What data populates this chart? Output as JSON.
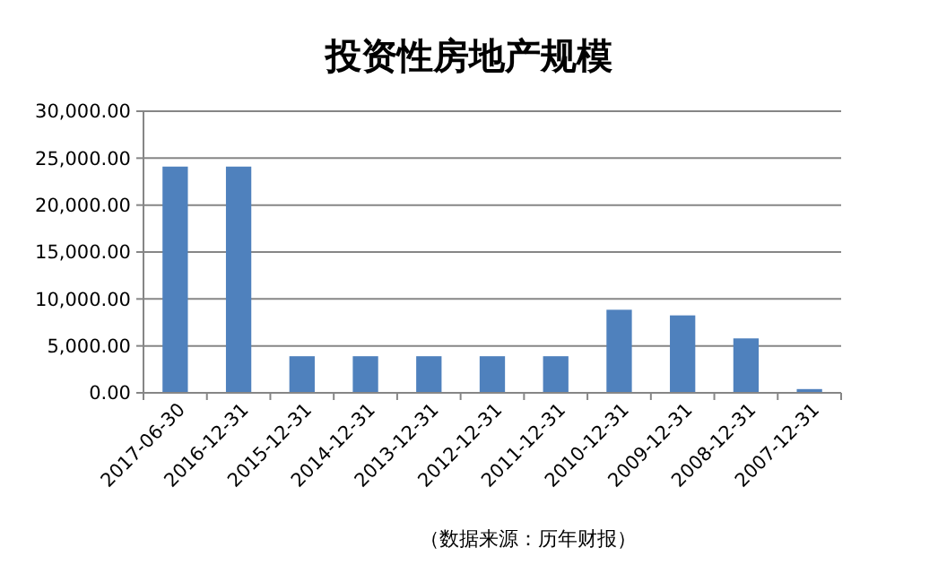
{
  "chart_data": {
    "type": "bar",
    "title": "投资性房地产规模",
    "categories": [
      "2017-06-30",
      "2016-12-31",
      "2015-12-31",
      "2014-12-31",
      "2013-12-31",
      "2012-12-31",
      "2011-12-31",
      "2010-12-31",
      "2009-12-31",
      "2008-12-31",
      "2007-12-31"
    ],
    "values": [
      24100,
      24100,
      3900,
      3900,
      3900,
      3900,
      3900,
      8850,
      8250,
      5800,
      400
    ],
    "color": "#4f81bd",
    "ylim": [
      0,
      30000
    ],
    "yticks": [
      {
        "value": 0,
        "label": "0.00"
      },
      {
        "value": 5000,
        "label": "5,000.00"
      },
      {
        "value": 10000,
        "label": "10,000.00"
      },
      {
        "value": 15000,
        "label": "15,000.00"
      },
      {
        "value": 20000,
        "label": "20,000.00"
      },
      {
        "value": 25000,
        "label": "25,000.00"
      },
      {
        "value": 30000,
        "label": "30,000.00"
      }
    ],
    "grid": "y",
    "annotations": [
      "（数据来源：历年财报）"
    ]
  }
}
